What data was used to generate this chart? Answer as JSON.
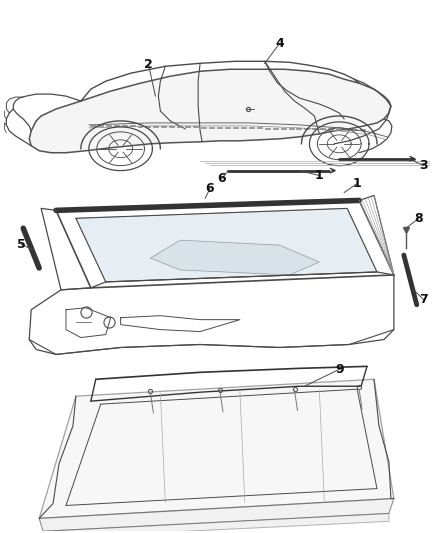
{
  "background_color": "#ffffff",
  "line_color": "#4a4a4a",
  "text_color": "#111111",
  "fig_width": 4.38,
  "fig_height": 5.33,
  "dpi": 100
}
